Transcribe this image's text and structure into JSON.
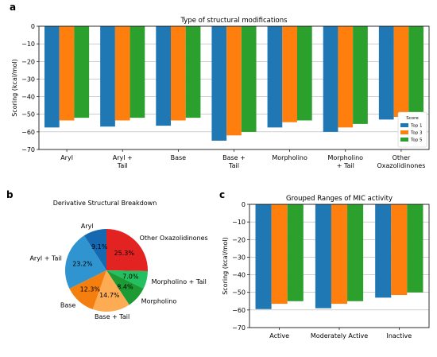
{
  "panel_letters": {
    "a": "a",
    "b": "b",
    "c": "c"
  },
  "chart_data": [
    {
      "panel": "a",
      "type": "bar",
      "title": "Type of structural modifications",
      "ylabel": "Scoring (kcal/mol)",
      "xlabel": "",
      "ylim": [
        -70,
        0
      ],
      "yticks": [
        0,
        -10,
        -20,
        -30,
        -40,
        -50,
        -60,
        -70
      ],
      "grid": "horizontal",
      "legend_title": "Score",
      "legend_position": "lower-right",
      "categories": [
        [
          "Aryl"
        ],
        [
          "Aryl +",
          "Tail"
        ],
        [
          "Base"
        ],
        [
          "Base +",
          "Tail"
        ],
        [
          "Morpholino"
        ],
        [
          "Morpholino",
          "+ Tail"
        ],
        [
          "Other",
          "Oxazolidinones"
        ]
      ],
      "series": [
        {
          "name": "Top 1",
          "color": "#1f77b4",
          "values": [
            -57.5,
            -57.0,
            -56.5,
            -65.0,
            -57.5,
            -60.0,
            -53.0
          ]
        },
        {
          "name": "Top 3",
          "color": "#ff7f0e",
          "values": [
            -53.5,
            -53.5,
            -53.5,
            -62.0,
            -54.5,
            -57.5,
            -51.5
          ]
        },
        {
          "name": "Top 5",
          "color": "#2ca02c",
          "values": [
            -52.0,
            -52.0,
            -52.0,
            -60.0,
            -53.5,
            -55.5,
            -49.5
          ]
        }
      ]
    },
    {
      "panel": "b",
      "type": "pie",
      "title": "Derivative Structural Breakdown",
      "slices": [
        {
          "label": "Other Oxazolidinones",
          "value": 25.3,
          "pct_label": "25.3%",
          "color": "#e32222"
        },
        {
          "label": "Morpholino + Tail",
          "value": 7.0,
          "pct_label": "7.0%",
          "color": "#22c060"
        },
        {
          "label": "Morpholino",
          "value": 8.4,
          "pct_label": "8.4%",
          "color": "#1e9a34"
        },
        {
          "label": "Base + Tail",
          "value": 14.7,
          "pct_label": "14.7%",
          "color": "#fdac54"
        },
        {
          "label": "Base",
          "value": 12.3,
          "pct_label": "12.3%",
          "color": "#f57f0e"
        },
        {
          "label": "Aryl + Tail",
          "value": 23.2,
          "pct_label": "23.2%",
          "color": "#2f94d0"
        },
        {
          "label": "Aryl",
          "value": 9.1,
          "pct_label": "9.1%",
          "color": "#1668b0"
        }
      ]
    },
    {
      "panel": "c",
      "type": "bar",
      "title": "Grouped Ranges of MIC activity",
      "ylabel": "Scoring (kcal/mol)",
      "xlabel": "",
      "ylim": [
        -70,
        0
      ],
      "yticks": [
        0,
        -10,
        -20,
        -30,
        -40,
        -50,
        -60,
        -70
      ],
      "grid": "horizontal",
      "categories": [
        [
          "Active"
        ],
        [
          "Moderately Active"
        ],
        [
          "Inactive"
        ]
      ],
      "series": [
        {
          "name": "Top 1",
          "color": "#1f77b4",
          "values": [
            -59.5,
            -59.0,
            -53.0
          ]
        },
        {
          "name": "Top 3",
          "color": "#ff7f0e",
          "values": [
            -56.5,
            -56.5,
            -51.5
          ]
        },
        {
          "name": "Top 5",
          "color": "#2ca02c",
          "values": [
            -55.0,
            -55.0,
            -50.0
          ]
        }
      ]
    }
  ]
}
